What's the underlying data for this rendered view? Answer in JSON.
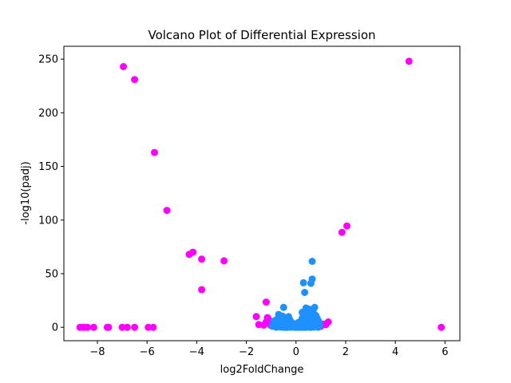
{
  "chart_data": {
    "type": "scatter",
    "title": "Volcano Plot of Differential Expression",
    "xlabel": "log2FoldChange",
    "ylabel": "-log10(padj)",
    "xlim": [
      -9.35,
      6.6
    ],
    "ylim": [
      -12.5,
      262
    ],
    "xticks": [
      -8,
      -6,
      -4,
      -2,
      0,
      2,
      4,
      6
    ],
    "yticks": [
      0,
      50,
      100,
      150,
      200,
      250
    ],
    "grid": false,
    "colors": {
      "significant": "#ff00ff",
      "not_significant": "#1e90ff"
    },
    "series": [
      {
        "color": "#ff00ff",
        "points": [
          [
            -6.95,
            243
          ],
          [
            -6.5,
            231
          ],
          [
            4.55,
            248
          ],
          [
            -5.7,
            163
          ],
          [
            -5.2,
            109
          ],
          [
            -4.3,
            68
          ],
          [
            -4.15,
            70
          ],
          [
            -3.8,
            63.5
          ],
          [
            -2.9,
            62
          ],
          [
            -3.8,
            35
          ],
          [
            1.85,
            88.5
          ],
          [
            2.05,
            94.5
          ],
          [
            -1.2,
            23.5
          ],
          [
            -1.6,
            10
          ],
          [
            -8.7,
            0
          ],
          [
            -8.55,
            0
          ],
          [
            -8.4,
            0
          ],
          [
            -8.15,
            0
          ],
          [
            -7.6,
            0
          ],
          [
            -7.55,
            0
          ],
          [
            -7.0,
            0
          ],
          [
            -6.8,
            0
          ],
          [
            -6.5,
            0
          ],
          [
            -5.95,
            0
          ],
          [
            -5.75,
            0
          ],
          [
            5.85,
            0
          ],
          [
            -1.5,
            2.5
          ],
          [
            -1.3,
            2
          ],
          [
            -1.2,
            5
          ],
          [
            -1.1,
            7
          ],
          [
            -1.05,
            3
          ],
          [
            -1.15,
            9
          ],
          [
            -0.95,
            4
          ],
          [
            -1.0,
            1.5
          ],
          [
            1.1,
            3
          ],
          [
            1.2,
            2.5
          ],
          [
            1.3,
            5
          ],
          [
            1.0,
            1
          ]
        ]
      },
      {
        "color": "#1e90ff",
        "points": [
          [
            0.65,
            61.5
          ],
          [
            0.65,
            45
          ],
          [
            0.6,
            41
          ],
          [
            0.3,
            41.5
          ],
          [
            0.35,
            32.5
          ],
          [
            -0.5,
            18.5
          ],
          [
            0.75,
            18.5
          ],
          [
            0.4,
            18
          ],
          [
            0.5,
            17
          ],
          [
            0.25,
            14
          ],
          [
            0.55,
            13
          ],
          [
            -0.7,
            12
          ],
          [
            0.8,
            11
          ],
          [
            -0.3,
            10
          ],
          [
            0.45,
            9
          ],
          [
            -0.6,
            9
          ],
          [
            0.7,
            8
          ],
          [
            -0.8,
            7
          ],
          [
            0.35,
            7
          ],
          [
            -0.45,
            6.5
          ],
          [
            0.9,
            6
          ],
          [
            -0.9,
            5.5
          ],
          [
            0.2,
            6
          ],
          [
            0.6,
            5
          ],
          [
            -0.2,
            5
          ],
          [
            0.85,
            4.5
          ],
          [
            -0.75,
            4
          ],
          [
            0.3,
            4
          ],
          [
            -0.5,
            3.5
          ],
          [
            0.55,
            3
          ],
          [
            -0.35,
            3
          ],
          [
            0.15,
            3
          ],
          [
            0.75,
            2.5
          ],
          [
            -0.65,
            2.5
          ],
          [
            0.4,
            2
          ],
          [
            -0.15,
            2
          ],
          [
            -0.85,
            2
          ],
          [
            0.95,
            1.5
          ],
          [
            0.05,
            1.5
          ],
          [
            -0.55,
            1.5
          ],
          [
            0.25,
            1
          ],
          [
            -0.25,
            1
          ],
          [
            0.65,
            1
          ],
          [
            -0.95,
            1
          ],
          [
            0.5,
            0.8
          ],
          [
            -0.4,
            0.8
          ],
          [
            0.1,
            0.5
          ],
          [
            -0.1,
            0.5
          ],
          [
            0.35,
            0.5
          ],
          [
            -0.7,
            0.5
          ],
          [
            0.8,
            0.5
          ],
          [
            0.0,
            0.3
          ],
          [
            0.45,
            0.3
          ],
          [
            -0.3,
            0.3
          ],
          [
            0.7,
            0.2
          ],
          [
            -0.6,
            0.2
          ],
          [
            0.2,
            0.1
          ],
          [
            -0.2,
            0.1
          ],
          [
            0.55,
            0.1
          ],
          [
            -0.5,
            0.1
          ],
          [
            0.9,
            0.1
          ],
          [
            -0.8,
            0.1
          ],
          [
            0.3,
            0
          ],
          [
            -0.45,
            0
          ],
          [
            0.6,
            0
          ],
          [
            -0.35,
            0
          ],
          [
            0.15,
            0
          ],
          [
            -0.05,
            0
          ],
          [
            0.05,
            0
          ],
          [
            0.4,
            0
          ],
          [
            0.5,
            10.5
          ],
          [
            0.7,
            13.5
          ],
          [
            0.45,
            15.5
          ],
          [
            0.6,
            16.5
          ],
          [
            0.3,
            12
          ],
          [
            0.55,
            9.5
          ],
          [
            -0.55,
            10.5
          ],
          [
            -0.4,
            8
          ],
          [
            -0.65,
            7.5
          ],
          [
            0.85,
            8.5
          ],
          [
            0.95,
            4
          ],
          [
            0.75,
            6.5
          ],
          [
            0.25,
            8.5
          ],
          [
            -0.25,
            7
          ],
          [
            0.1,
            4.5
          ],
          [
            -0.1,
            3.5
          ]
        ]
      }
    ]
  }
}
